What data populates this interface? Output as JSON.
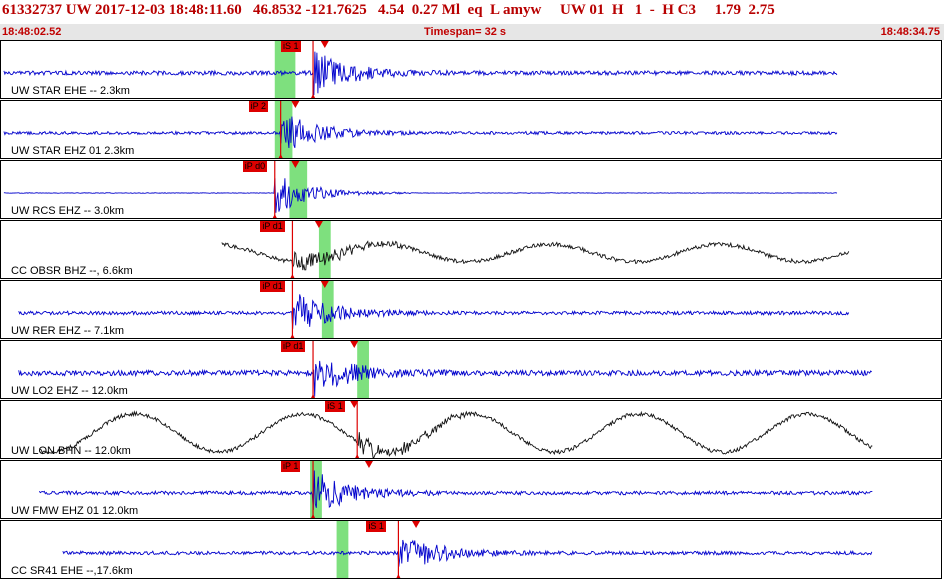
{
  "header": {
    "event_line": "61332737 UW 2017-12-03 18:48:11.60   46.8532 -121.7625   4.54  0.27 Ml  eq  L amyw     UW 01  H   1  -  H C3     1.79  2.75",
    "time_start": "18:48:02.52",
    "timespan": "Timespan=  32 s",
    "time_end": "18:48:34.75"
  },
  "colors": {
    "trace_blue": "#0000cc",
    "trace_black": "#111111",
    "pick_red": "#dd0000",
    "window_green": "#7ee07e"
  },
  "traces": [
    {
      "label": "UW STAR EHE -- 2.3km",
      "color": "#0000cc",
      "pick_label": "iS 1",
      "pick_time": 10.6,
      "s_time": 11.0,
      "window": [
        9.3,
        10.0
      ],
      "start": 0.1,
      "end": 28.4,
      "amp": 0.35,
      "pattern": "noise"
    },
    {
      "label": "UW STAR EHZ 01 2.3km",
      "color": "#0000cc",
      "pick_label": "iP 2",
      "pick_time": 9.5,
      "s_time": 10.0,
      "window": [
        9.3,
        9.9
      ],
      "start": 0.1,
      "end": 28.4,
      "amp": 0.25,
      "pattern": "noise"
    },
    {
      "label": "UW RCS EHZ -- 3.0km",
      "color": "#0000cc",
      "pick_label": "iP d0",
      "pick_time": 9.3,
      "s_time": 10.0,
      "window": [
        9.8,
        10.4
      ],
      "start": 0.1,
      "end": 28.4,
      "amp": 0.05,
      "pattern": "quiet"
    },
    {
      "label": "CC OBSR BHZ --, 6.6km",
      "color": "#111111",
      "pick_label": "iP d1",
      "pick_time": 9.9,
      "s_time": 10.8,
      "window": [
        10.8,
        11.2
      ],
      "start": 7.5,
      "end": 28.8,
      "amp": 0.25,
      "pattern": "sine"
    },
    {
      "label": "UW RER EHZ -- 7.1km",
      "color": "#0000cc",
      "pick_label": "iP d1",
      "pick_time": 9.9,
      "s_time": 11.0,
      "window": [
        10.9,
        11.3
      ],
      "start": 0.6,
      "end": 28.8,
      "amp": 0.3,
      "pattern": "noise"
    },
    {
      "label": "UW LO2 EHZ -- 12.0km",
      "color": "#0000cc",
      "pick_label": "iP d1",
      "pick_time": 10.6,
      "s_time": 12.0,
      "window": [
        12.1,
        12.5
      ],
      "start": 0.6,
      "end": 29.6,
      "amp": 0.45,
      "pattern": "noise"
    },
    {
      "label": "UW LON BHN -- 12.0km",
      "color": "#111111",
      "pick_label": "iS 1",
      "pick_time": 12.1,
      "s_time": 12.0,
      "window": [
        0,
        0
      ],
      "start": 1.3,
      "end": 29.6,
      "amp": 0.55,
      "pattern": "sine"
    },
    {
      "label": "UW FMW EHZ 01 12.0km",
      "color": "#0000cc",
      "pick_label": "iP 1",
      "pick_time": 10.6,
      "s_time": 12.5,
      "window": [
        10.5,
        10.9
      ],
      "start": 1.3,
      "end": 29.6,
      "amp": 0.3,
      "pattern": "noise"
    },
    {
      "label": "CC SR41 EHE --,17.6km",
      "color": "#0000cc",
      "pick_label": "iS 1",
      "pick_time": 13.5,
      "s_time": 14.1,
      "window": [
        11.4,
        11.8
      ],
      "start": 2.1,
      "end": 29.6,
      "amp": 0.3,
      "pattern": "noise"
    }
  ]
}
